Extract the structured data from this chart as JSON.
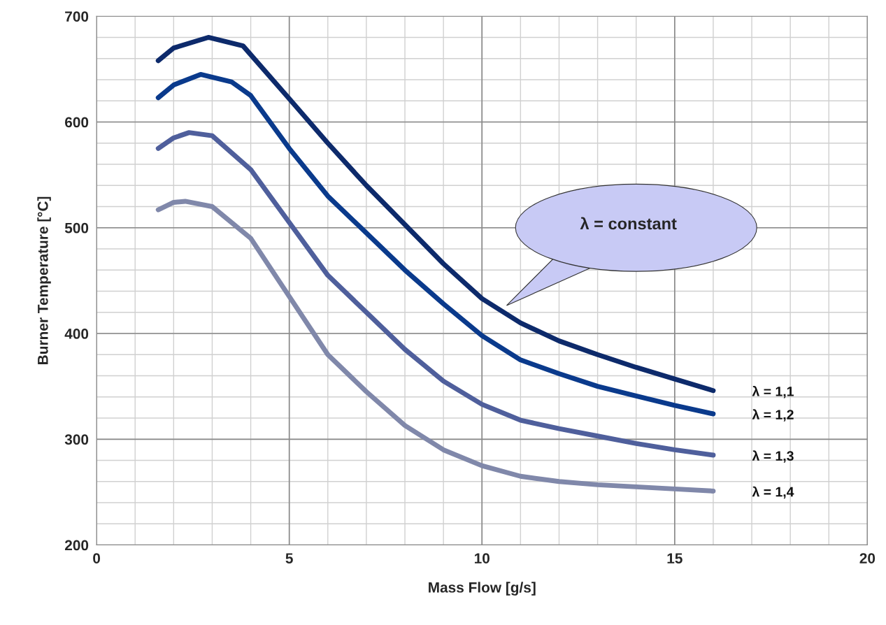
{
  "chart_data": {
    "type": "line",
    "xlabel": "Mass Flow [g/s]",
    "ylabel": "Burner Temperature [°C]",
    "xlim": [
      0,
      20
    ],
    "xticks": [
      0,
      5,
      10,
      15,
      20
    ],
    "ylim": [
      200,
      700
    ],
    "yticks": [
      200,
      300,
      400,
      500,
      600,
      700
    ],
    "grid": true,
    "legend": false,
    "marker": "none",
    "line_style": "solid",
    "series": [
      {
        "name": "λ = 1,1",
        "color": "#0d2a6b",
        "x": [
          1.6,
          2,
          2.9,
          3.8,
          5,
          6,
          7,
          8,
          9,
          10,
          11,
          12,
          13,
          14,
          15,
          16
        ],
        "values": [
          658,
          670,
          680,
          672,
          622,
          580,
          540,
          503,
          466,
          433,
          410,
          393,
          380,
          368,
          357,
          346
        ]
      },
      {
        "name": "λ = 1,2",
        "color": "#0a3a8c",
        "x": [
          1.6,
          2,
          2.7,
          3.5,
          4,
          5,
          6,
          7,
          8,
          9,
          10,
          11,
          12,
          13,
          14,
          15,
          16
        ],
        "values": [
          623,
          635,
          645,
          638,
          625,
          575,
          530,
          495,
          460,
          428,
          398,
          375,
          362,
          350,
          341,
          332,
          324
        ]
      },
      {
        "name": "λ = 1,3",
        "color": "#4f5f9c",
        "x": [
          1.6,
          2,
          2.4,
          3,
          4,
          5,
          6,
          7,
          8,
          9,
          10,
          11,
          12,
          13,
          14,
          15,
          16
        ],
        "values": [
          575,
          585,
          590,
          587,
          555,
          505,
          455,
          420,
          385,
          355,
          333,
          318,
          310,
          303,
          296,
          290,
          285
        ]
      },
      {
        "name": "λ = 1,4",
        "color": "#8088aa",
        "x": [
          1.6,
          2,
          2.3,
          3,
          4,
          5,
          6,
          7,
          8,
          9,
          10,
          11,
          12,
          13,
          14,
          15,
          16
        ],
        "values": [
          517,
          524,
          525,
          520,
          490,
          435,
          380,
          345,
          313,
          290,
          275,
          265,
          260,
          257,
          255,
          253,
          251
        ]
      }
    ],
    "annotations": [
      "λ = constant"
    ]
  }
}
